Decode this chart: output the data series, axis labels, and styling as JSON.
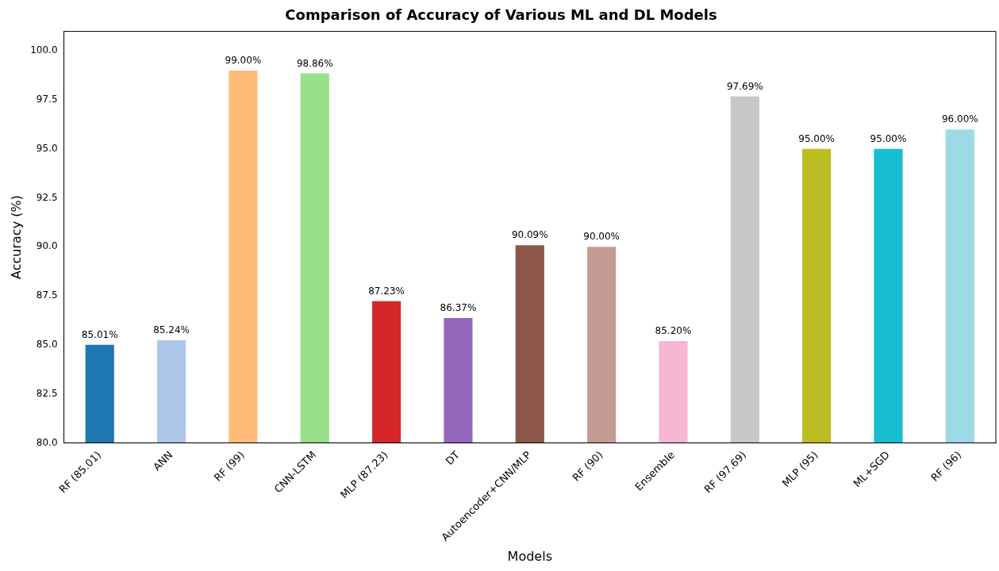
{
  "chart_data": {
    "type": "bar",
    "title": "Comparison of Accuracy of Various ML and DL Models",
    "xlabel": "Models",
    "ylabel": "Accuracy (%)",
    "categories": [
      "RF (85.01)",
      "ANN",
      "RF (99)",
      "CNN-LSTM",
      "MLP (87.23)",
      "DT",
      "Autoencoder+CNN/MLP",
      "RF (90)",
      "Ensemble",
      "RF (97.69)",
      "MLP (95)",
      "ML+SGD",
      "RF (96)"
    ],
    "values": [
      85.01,
      85.24,
      99.0,
      98.86,
      87.23,
      86.37,
      90.09,
      90.0,
      85.2,
      97.69,
      95.0,
      95.0,
      96.0
    ],
    "value_labels": [
      "85.01%",
      "85.24%",
      "99.00%",
      "98.86%",
      "87.23%",
      "86.37%",
      "90.09%",
      "90.00%",
      "85.20%",
      "97.69%",
      "95.00%",
      "95.00%",
      "96.00%"
    ],
    "colors": [
      "#1f77b4",
      "#aec7e8",
      "#ffbb78",
      "#98df8a",
      "#d62728",
      "#9467bd",
      "#8c564b",
      "#c49c94",
      "#f7b6d2",
      "#c7c7c7",
      "#bcbd22",
      "#17becf",
      "#9edae5"
    ],
    "ylim": [
      80,
      101
    ],
    "yticks": [
      {
        "value": 80,
        "label": "80.0"
      },
      {
        "value": 82.5,
        "label": "82.5"
      },
      {
        "value": 85,
        "label": "85.0"
      },
      {
        "value": 87.5,
        "label": "87.5"
      },
      {
        "value": 90,
        "label": "90.0"
      },
      {
        "value": 92.5,
        "label": "92.5"
      },
      {
        "value": 95,
        "label": "95.0"
      },
      {
        "value": 97.5,
        "label": "97.5"
      },
      {
        "value": 100,
        "label": "100.0"
      }
    ],
    "grid": false,
    "legend": false
  }
}
